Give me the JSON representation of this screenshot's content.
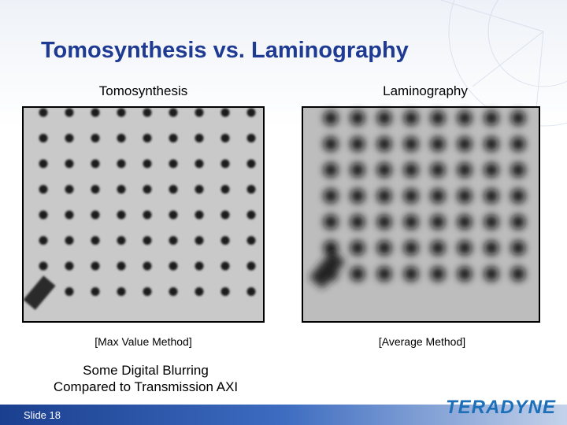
{
  "header": {
    "title": "Tomosynthesis vs. Laminography"
  },
  "panels": [
    {
      "label": "Tomosynthesis",
      "caption": "[Max Value Method]"
    },
    {
      "label": "Laminography",
      "caption": "[Average Method]"
    }
  ],
  "description": [
    "Some Digital Blurring",
    "Compared to Transmission AXI"
  ],
  "footer": {
    "slide": "Slide 18",
    "logo": "TERADYNE"
  }
}
